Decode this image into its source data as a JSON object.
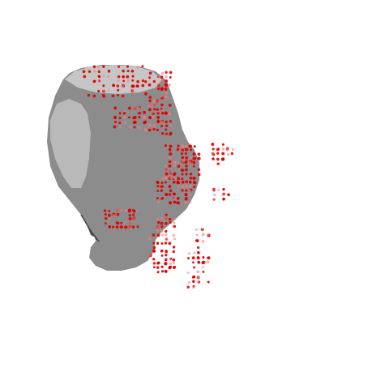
{
  "scene": {
    "background_color": "#ffffff",
    "mesh": {
      "description_name": "gray-3d-mesh",
      "body_color": "#8a8a8a",
      "highlight_color": "#b8b8b8",
      "top_color": "#c4c4c4",
      "shadow_color": "#5a5a5a"
    },
    "point_cloud": {
      "color": "#e00000",
      "light_color": "#f08080"
    }
  }
}
